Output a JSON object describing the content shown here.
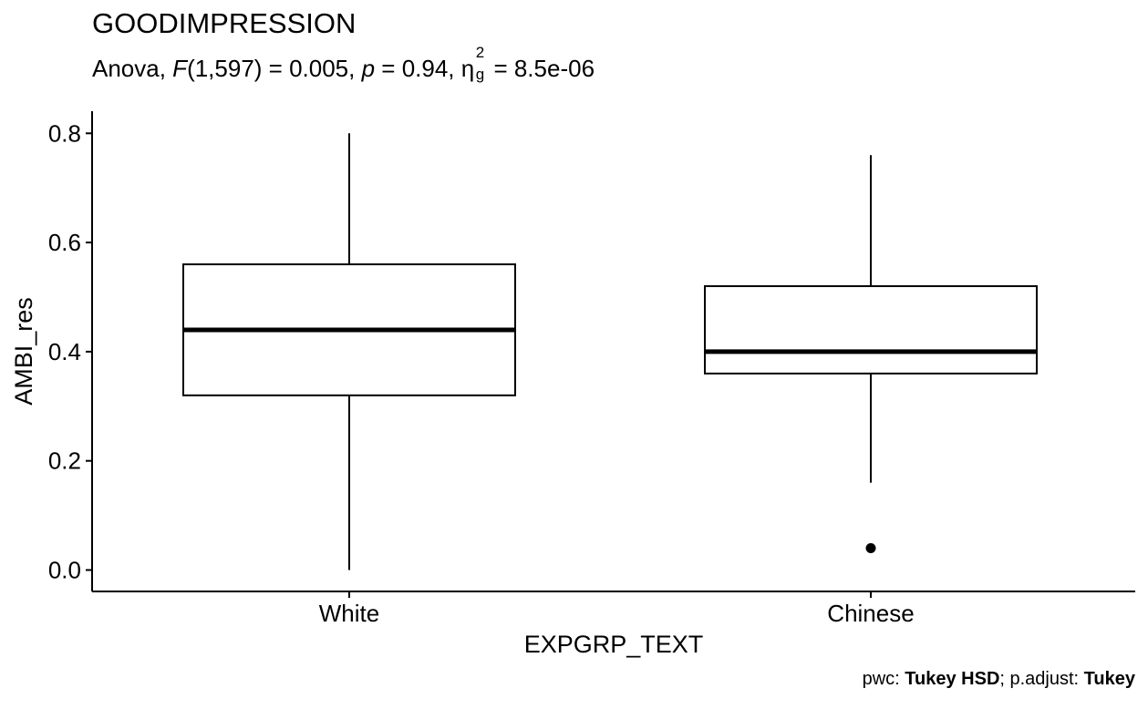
{
  "chart_data": {
    "type": "box",
    "title": "GOODIMPRESSION",
    "subtitle": {
      "prefix": "Anova, ",
      "stat_symbol": "F",
      "stat_text": "(1,597) = 0.005, ",
      "p_symbol": "p",
      "p_text": " = 0.94, ",
      "effect_symbol": "η",
      "effect_sup": "2",
      "effect_sub": "g",
      "effect_text": " = 8.5e-06"
    },
    "xlabel": "EXPGRP_TEXT",
    "ylabel": "AMBI_res",
    "ylim": [
      -0.04,
      0.84
    ],
    "yticks": [
      0.0,
      0.2,
      0.4,
      0.6,
      0.8
    ],
    "ytick_labels": [
      "0.0",
      "0.2",
      "0.4",
      "0.6",
      "0.8"
    ],
    "categories": [
      "White",
      "Chinese"
    ],
    "boxes": [
      {
        "category": "White",
        "whisker_low": 0.0,
        "q1": 0.32,
        "median": 0.44,
        "q3": 0.56,
        "whisker_high": 0.8,
        "outliers": []
      },
      {
        "category": "Chinese",
        "whisker_low": 0.16,
        "q1": 0.36,
        "median": 0.4,
        "q3": 0.52,
        "whisker_high": 0.76,
        "outliers": [
          0.04
        ]
      }
    ],
    "grid": false,
    "caption": {
      "label1": "pwc: ",
      "value1": "Tukey HSD",
      "label2": "; p.adjust: ",
      "value2": "Tukey"
    }
  }
}
